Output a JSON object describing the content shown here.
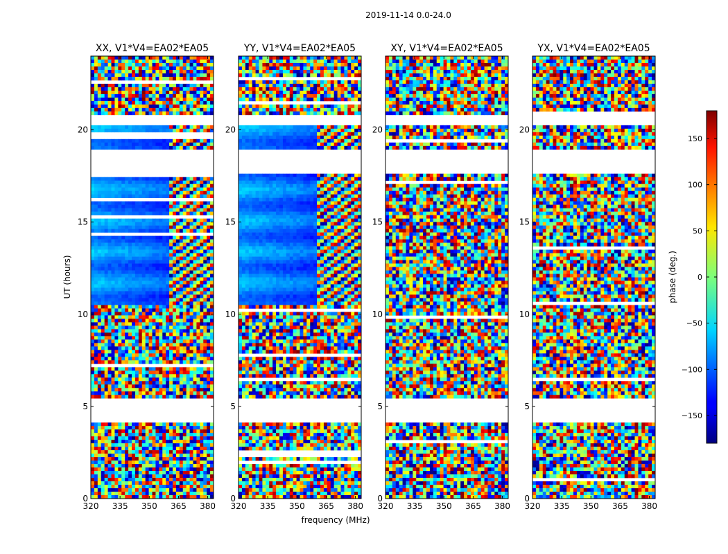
{
  "figure_title": "2019-11-14 0.0-24.0",
  "chart_data": {
    "type": "heatmap",
    "suptitle": "2019-11-14 0.0-24.0",
    "xlabel": "frequency (MHz)",
    "ylabel": "UT (hours)",
    "xlim": [
      320,
      383
    ],
    "ylim": [
      0,
      24
    ],
    "xticks": [
      "320",
      "335",
      "350",
      "365",
      "380"
    ],
    "yticks": [
      "0",
      "5",
      "10",
      "15",
      "20"
    ],
    "panels": [
      {
        "title": "XX, V1*V4=EA02*EA05",
        "product": "XX"
      },
      {
        "title": "YY, V1*V4=EA02*EA05",
        "product": "YY"
      },
      {
        "title": "XY, V1*V4=EA02*EA05",
        "product": "XY"
      },
      {
        "title": "YX, V1*V4=EA02*EA05",
        "product": "YX"
      }
    ],
    "gaps_hours": [
      [
        4.1,
        5.5
      ],
      [
        17.6,
        18.9
      ],
      [
        20.3,
        20.8
      ]
    ],
    "colorbar": {
      "label": "phase (deg.)",
      "colormap": "jet",
      "range": [
        -180,
        180
      ],
      "ticks": [
        "150",
        "100",
        "50",
        "0",
        "−50",
        "−100",
        "−150"
      ],
      "tick_values": [
        150,
        100,
        50,
        0,
        -50,
        -100,
        -150
      ]
    }
  }
}
